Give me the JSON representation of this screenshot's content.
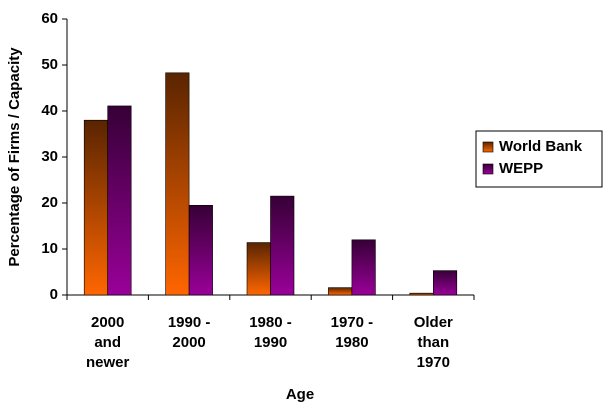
{
  "chart_data": {
    "type": "bar",
    "xlabel": "Age",
    "ylabel": "Percentage of Firms / Capacity",
    "categories": [
      "2000 and newer",
      "1990 - 2000",
      "1980 - 1990",
      "1970 - 1980",
      "Older than 1970"
    ],
    "series": [
      {
        "name": "World Bank",
        "color": "#ff6600",
        "values": [
          38,
          48.3,
          11.4,
          1.6,
          0.4
        ]
      },
      {
        "name": "WEPP",
        "color": "#990099",
        "values": [
          41.1,
          19.5,
          21.5,
          12,
          5.3
        ]
      }
    ],
    "ylim": [
      0,
      60
    ],
    "yticks": [
      0,
      10,
      20,
      30,
      40,
      50,
      60
    ],
    "grid": false,
    "legend": "right"
  }
}
